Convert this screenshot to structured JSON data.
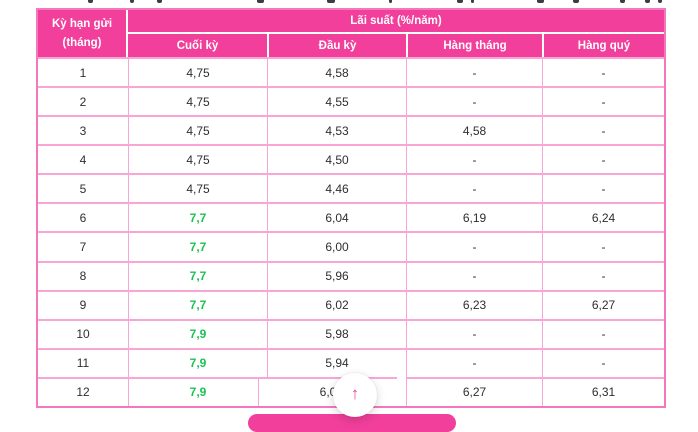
{
  "chart_data": {
    "type": "table",
    "corner_header": [
      "Kỳ hạn gửi",
      "(tháng)"
    ],
    "title_header": "Lãi suất (%/năm)",
    "columns": [
      "Cuối kỳ",
      "Đầu kỳ",
      "Hàng tháng",
      "Hàng quý"
    ],
    "rows": [
      {
        "term": "1",
        "values": [
          "4,75",
          "4,58",
          "-",
          "-"
        ],
        "highlight": false
      },
      {
        "term": "2",
        "values": [
          "4,75",
          "4,55",
          "-",
          "-"
        ],
        "highlight": false
      },
      {
        "term": "3",
        "values": [
          "4,75",
          "4,53",
          "4,58",
          "-"
        ],
        "highlight": false
      },
      {
        "term": "4",
        "values": [
          "4,75",
          "4,50",
          "-",
          "-"
        ],
        "highlight": false
      },
      {
        "term": "5",
        "values": [
          "4,75",
          "4,46",
          "-",
          "-"
        ],
        "highlight": false
      },
      {
        "term": "6",
        "values": [
          "7,7",
          "6,04",
          "6,19",
          "6,24"
        ],
        "highlight": true
      },
      {
        "term": "7",
        "values": [
          "7,7",
          "6,00",
          "-",
          "-"
        ],
        "highlight": true
      },
      {
        "term": "8",
        "values": [
          "7,7",
          "5,96",
          "-",
          "-"
        ],
        "highlight": true
      },
      {
        "term": "9",
        "values": [
          "7,7",
          "6,02",
          "6,23",
          "6,27"
        ],
        "highlight": true
      },
      {
        "term": "10",
        "values": [
          "7,9",
          "5,98",
          "-",
          "-"
        ],
        "highlight": true
      },
      {
        "term": "11",
        "values": [
          "7,9",
          "5,94",
          "-",
          "-"
        ],
        "highlight": true
      },
      {
        "term": "12",
        "values": [
          "7,9",
          "6,0",
          "6,27",
          "6,31"
        ],
        "highlight": true
      }
    ],
    "obscured_cell": {
      "row": 11,
      "col": 1
    }
  },
  "scroll_top_button": {
    "glyph": "↑"
  },
  "colors": {
    "header_bg": "#F13F9B",
    "header_text": "#FFFFFF",
    "row_separator": "#F9A5D5",
    "outer_border": "#F478BD",
    "body_text": "#2E2E33",
    "highlight_green": "#1CC153",
    "accent_pink": "#F13F9B"
  }
}
